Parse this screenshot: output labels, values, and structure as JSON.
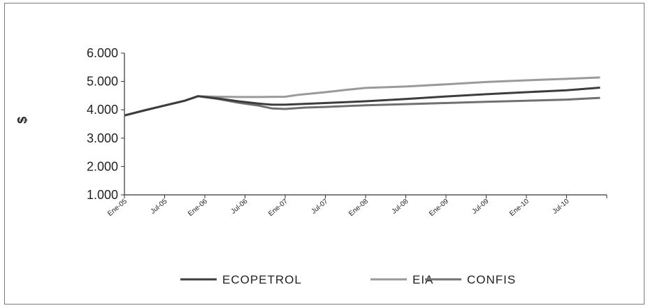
{
  "chart_data": {
    "type": "line",
    "title": "",
    "xlabel": "",
    "ylabel": "$",
    "ylim": [
      1000,
      6000
    ],
    "y_ticks": [
      "1.000",
      "2.000",
      "3.000",
      "4.000",
      "5.000",
      "6.000"
    ],
    "y_tick_values": [
      1000,
      2000,
      3000,
      4000,
      5000,
      6000
    ],
    "x_ticks": [
      "Ene-05",
      "Jul-05",
      "Ene-06",
      "Jul-06",
      "Ene-07",
      "Jul-07",
      "Ene-08",
      "Jul-08",
      "Ene-09",
      "Jul-09",
      "Ene-10",
      "Jul-10"
    ],
    "x_range_months": 72,
    "grid": false,
    "legend_position": "bottom",
    "series": [
      {
        "name": "ECOPETROL",
        "color": "#3d3d3d",
        "points": [
          [
            0,
            3800
          ],
          [
            3,
            3980
          ],
          [
            6,
            4150
          ],
          [
            9,
            4320
          ],
          [
            11,
            4480
          ],
          [
            14,
            4400
          ],
          [
            17,
            4300
          ],
          [
            20,
            4220
          ],
          [
            22,
            4180
          ],
          [
            24,
            4180
          ],
          [
            30,
            4240
          ],
          [
            36,
            4300
          ],
          [
            42,
            4380
          ],
          [
            48,
            4470
          ],
          [
            54,
            4550
          ],
          [
            60,
            4620
          ],
          [
            66,
            4690
          ],
          [
            71,
            4780
          ]
        ]
      },
      {
        "name": "EIA",
        "color": "#9a9a9a",
        "points": [
          [
            0,
            3800
          ],
          [
            3,
            3980
          ],
          [
            6,
            4150
          ],
          [
            9,
            4320
          ],
          [
            11,
            4480
          ],
          [
            14,
            4460
          ],
          [
            17,
            4450
          ],
          [
            20,
            4450
          ],
          [
            24,
            4460
          ],
          [
            26,
            4530
          ],
          [
            30,
            4620
          ],
          [
            33,
            4700
          ],
          [
            36,
            4770
          ],
          [
            42,
            4820
          ],
          [
            48,
            4900
          ],
          [
            54,
            4980
          ],
          [
            60,
            5040
          ],
          [
            66,
            5090
          ],
          [
            71,
            5140
          ]
        ]
      },
      {
        "name": "CONFIS",
        "color": "#707070",
        "points": [
          [
            0,
            3800
          ],
          [
            3,
            3980
          ],
          [
            6,
            4150
          ],
          [
            9,
            4320
          ],
          [
            11,
            4480
          ],
          [
            14,
            4380
          ],
          [
            17,
            4250
          ],
          [
            20,
            4150
          ],
          [
            22,
            4050
          ],
          [
            24,
            4030
          ],
          [
            27,
            4080
          ],
          [
            30,
            4100
          ],
          [
            36,
            4160
          ],
          [
            42,
            4200
          ],
          [
            48,
            4240
          ],
          [
            54,
            4280
          ],
          [
            60,
            4320
          ],
          [
            66,
            4360
          ],
          [
            71,
            4420
          ]
        ]
      }
    ]
  }
}
